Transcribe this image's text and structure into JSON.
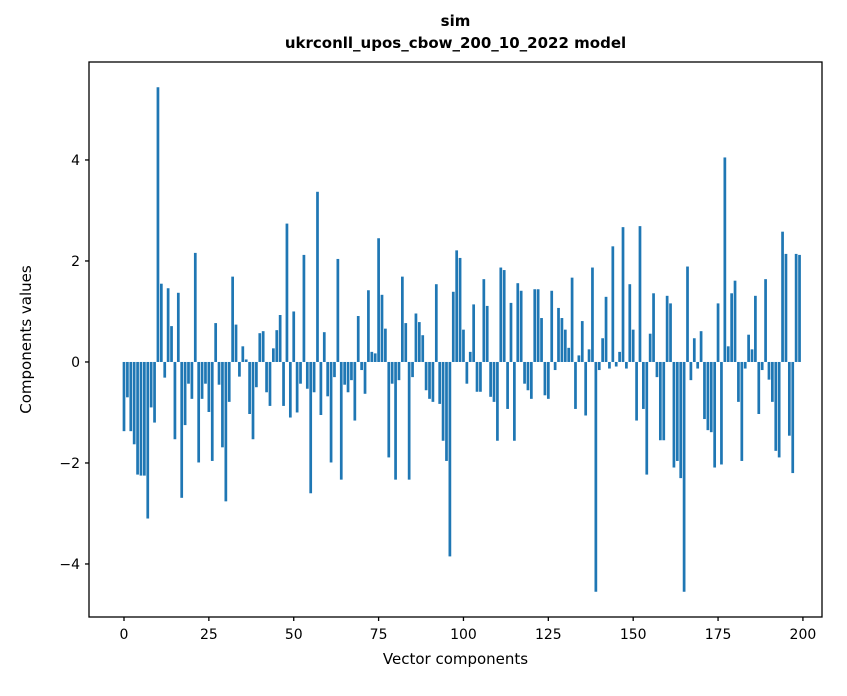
{
  "figure": {
    "background": "#ffffff"
  },
  "chart_data": {
    "type": "bar",
    "title": "sim",
    "subtitle": "ukrconll_upos_cbow_200_10_2022 model",
    "xlabel": "Vector components",
    "ylabel": "Components values",
    "bar_color": "#1f77b4",
    "grid": false,
    "legend": null,
    "n_components": 200,
    "x_ticks": [
      0,
      25,
      50,
      75,
      100,
      125,
      150,
      175,
      200
    ],
    "y_ticks": [
      -4,
      -2,
      0,
      2,
      4
    ],
    "xlim": [
      -10.31,
      205.62
    ],
    "ylim": [
      -5.05,
      5.94
    ],
    "values": [
      -1.37,
      -0.7,
      -1.37,
      -1.63,
      -2.23,
      -2.25,
      -2.25,
      -3.1,
      -0.9,
      -1.2,
      5.44,
      1.55,
      -0.31,
      1.46,
      0.71,
      -1.53,
      1.37,
      -2.69,
      -1.25,
      -0.43,
      -0.73,
      2.16,
      -1.99,
      -0.73,
      -0.43,
      -0.99,
      -1.96,
      0.77,
      -0.45,
      -1.69,
      -2.76,
      -0.79,
      1.69,
      0.74,
      -0.29,
      0.31,
      0.05,
      -1.03,
      -1.53,
      -0.5,
      0.57,
      0.61,
      -0.6,
      -0.87,
      0.27,
      0.63,
      0.93,
      -0.87,
      2.74,
      -1.1,
      1.0,
      -1.0,
      -0.43,
      2.12,
      -0.53,
      -2.6,
      -0.6,
      3.37,
      -1.05,
      0.59,
      -0.68,
      -1.99,
      -0.3,
      2.04,
      -2.33,
      -0.45,
      -0.6,
      -0.36,
      -1.16,
      0.91,
      -0.16,
      -0.63,
      1.42,
      0.2,
      0.17,
      2.45,
      1.33,
      0.66,
      -1.89,
      -0.43,
      -2.33,
      -0.36,
      1.69,
      0.77,
      -2.33,
      -0.3,
      0.96,
      0.79,
      0.53,
      -0.56,
      -0.73,
      -0.79,
      1.54,
      -0.83,
      -1.56,
      -1.96,
      -3.85,
      1.39,
      2.21,
      2.06,
      0.64,
      -0.43,
      0.2,
      1.14,
      -0.59,
      -0.59,
      1.64,
      1.11,
      -0.69,
      -0.79,
      -1.56,
      1.87,
      1.82,
      -0.93,
      1.17,
      -1.56,
      1.56,
      1.41,
      -0.43,
      -0.56,
      -0.73,
      1.44,
      1.44,
      0.87,
      -0.66,
      -0.73,
      1.41,
      -0.16,
      1.07,
      0.87,
      0.64,
      0.28,
      1.67,
      -0.93,
      0.13,
      0.81,
      -1.06,
      0.25,
      1.87,
      -4.55,
      -0.16,
      0.47,
      1.29,
      -0.13,
      2.29,
      -0.09,
      0.2,
      2.67,
      -0.13,
      1.54,
      0.64,
      -1.16,
      2.69,
      -0.93,
      -2.23,
      0.56,
      1.36,
      -0.3,
      -1.55,
      -1.55,
      1.31,
      1.16,
      -2.09,
      -1.96,
      -2.3,
      -4.55,
      1.89,
      -0.36,
      0.47,
      -0.13,
      0.61,
      -1.13,
      -1.35,
      -1.39,
      -2.09,
      1.16,
      -2.03,
      4.05,
      0.31,
      1.36,
      1.61,
      -0.79,
      -1.96,
      -0.13,
      0.54,
      0.25,
      1.31,
      -1.03,
      -0.16,
      1.64,
      -0.35,
      -0.79,
      -1.76,
      -1.89,
      2.58,
      2.14,
      -1.46,
      -2.2,
      2.14,
      2.12
    ]
  }
}
